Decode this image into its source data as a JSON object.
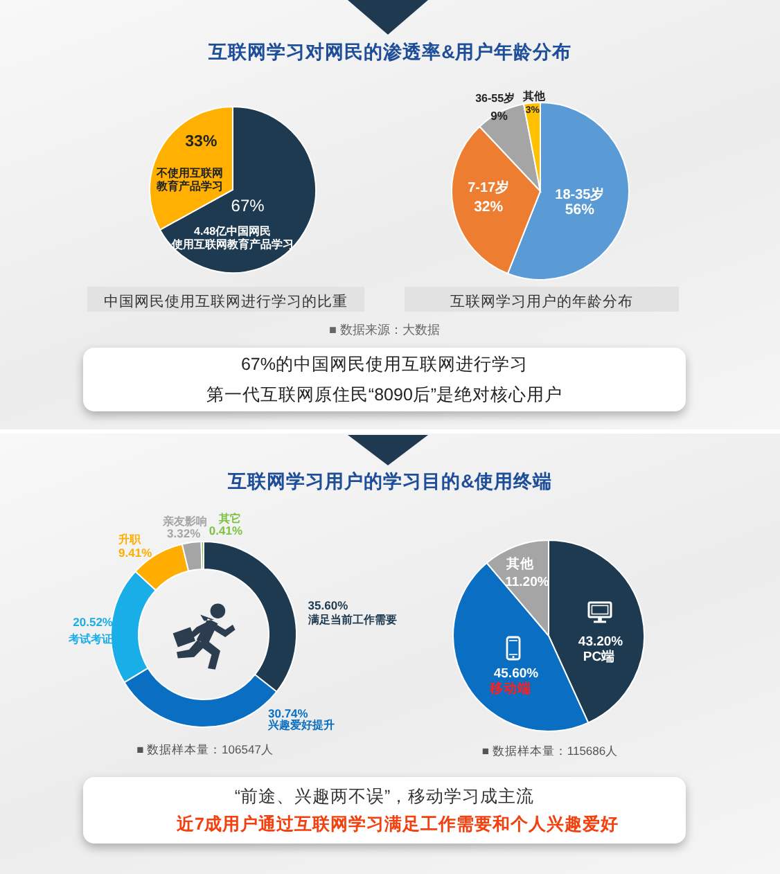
{
  "chart_data": [
    {
      "type": "other",
      "title": "互联网学习对网民的渗透率&用户年龄分布"
    },
    {
      "type": "pie",
      "title": "中国网民使用互联网进行学习的比重",
      "categories": [
        "4.48亿中国网民使用互联网教育产品学习",
        "不使用互联网教育产品学习"
      ],
      "values": [
        67,
        33
      ],
      "colors": [
        "#1e3a50",
        "#ffb000"
      ],
      "value_labels": [
        "67%",
        "33%"
      ]
    },
    {
      "type": "pie",
      "title": "互联网学习用户的年龄分布",
      "categories": [
        "18-35岁",
        "7-17岁",
        "36-55岁",
        "其他"
      ],
      "values": [
        56,
        32,
        9,
        3
      ],
      "colors": [
        "#5b9bd5",
        "#ed7d31",
        "#a5a5a5",
        "#ffc000"
      ],
      "value_labels": [
        "56%",
        "32%",
        "9%",
        "3%"
      ]
    },
    {
      "type": "other",
      "annotations": [
        "■ 数据来源：大数据",
        "67%的中国网民使用互联网进行学习",
        "第一代互联网原住民“8090后”是绝对核心用户"
      ]
    },
    {
      "type": "other",
      "title": "互联网学习用户的学习目的&使用终端"
    },
    {
      "type": "donut",
      "categories": [
        "满足当前工作需要",
        "兴趣爱好提升",
        "考试考证",
        "升职",
        "亲友影响",
        "其它"
      ],
      "values": [
        35.6,
        30.74,
        20.52,
        9.41,
        3.32,
        0.41
      ],
      "colors": [
        "#1e3a50",
        "#0a6fc2",
        "#1aaee8",
        "#ffad00",
        "#a5a5a5",
        "#7dc242"
      ],
      "value_labels": [
        "35.60%",
        "30.74%",
        "20.52%",
        "9.41%",
        "3.32%",
        "0.41%"
      ],
      "annotations": [
        "■ 数据样本量：106547人"
      ]
    },
    {
      "type": "pie",
      "categories": [
        "PC端",
        "移动端",
        "其他"
      ],
      "values": [
        43.2,
        45.6,
        11.2
      ],
      "colors": [
        "#1e3a50",
        "#0a6fc2",
        "#a5a5a5"
      ],
      "value_labels": [
        "43.20%",
        "45.60%",
        "11.20%"
      ],
      "annotations": [
        "■ 数据样本量：115686人"
      ]
    },
    {
      "type": "other",
      "annotations": [
        "“前途、兴趣两不误”，移动学习成主流",
        "近7成用户通过互联网学习满足工作需要和个人兴趣爱好"
      ]
    }
  ]
}
